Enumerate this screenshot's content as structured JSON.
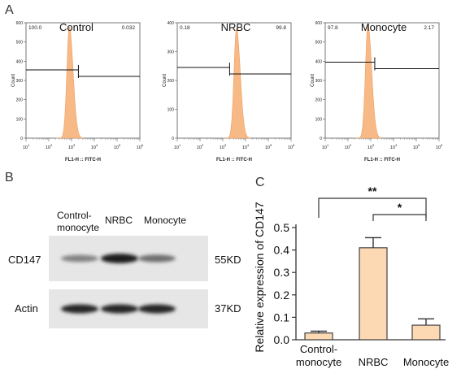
{
  "panel_letters": {
    "a": "A",
    "b": "B",
    "c": "C"
  },
  "chart_data": [
    {
      "type": "area",
      "panel": "A",
      "label": "Control",
      "xlabel": "FL1-H :: FITC-H",
      "ylabel": "Count",
      "x_scale": "log",
      "xlim": [
        10,
        1000000
      ],
      "x_ticks": [
        "10^1",
        "10^2",
        "10^3",
        "10^4",
        "10^5",
        "10^6"
      ],
      "ylim": [
        0,
        600
      ],
      "y_ticks": [
        "0",
        "100",
        "200",
        "300",
        "400",
        "500",
        "600"
      ],
      "gate_left_value": "100.0",
      "gate_right_value": "0.032",
      "peak_x": 800,
      "peak_count": 580,
      "gate_x": 2000,
      "gate_count": 355
    },
    {
      "type": "area",
      "panel": "A",
      "label": "NRBC",
      "xlabel": "FL1-H :: FITC-H",
      "ylabel": "Count",
      "x_scale": "log",
      "xlim": [
        10,
        1000000
      ],
      "x_ticks": [
        "10^1",
        "10^2",
        "10^3",
        "10^4",
        "10^5",
        "10^6"
      ],
      "ylim": [
        0,
        400
      ],
      "y_ticks": [
        "0",
        "100",
        "200",
        "300",
        "400"
      ],
      "gate_left_value": "0.18",
      "gate_right_value": "99.8",
      "peak_x": 4000,
      "peak_count": 380,
      "gate_x": 2000,
      "gate_count": 245
    },
    {
      "type": "area",
      "panel": "A",
      "label": "Monocyte",
      "xlabel": "FL1-H :: FITC-H",
      "ylabel": "Count",
      "x_scale": "log",
      "xlim": [
        10,
        1000000
      ],
      "x_ticks": [
        "10^1",
        "10^2",
        "10^3",
        "10^4",
        "10^5",
        "10^6"
      ],
      "ylim": [
        0,
        600
      ],
      "y_ticks": [
        "0",
        "100",
        "200",
        "300",
        "400",
        "500",
        "600"
      ],
      "gate_left_value": "97.8",
      "gate_right_value": "2.17",
      "peak_x": 750,
      "peak_count": 590,
      "gate_x": 1500,
      "gate_count": 395
    },
    {
      "type": "bar",
      "panel": "C",
      "categories": [
        "Control-\nmonocyte",
        "NRBC",
        "Monocyte"
      ],
      "values": [
        0.03,
        0.41,
        0.065
      ],
      "errors": [
        0.008,
        0.045,
        0.028
      ],
      "ylabel": "Relative expression of CD147",
      "ylim": [
        0,
        0.5
      ],
      "y_ticks": [
        "0.0",
        "0.1",
        "0.2",
        "0.3",
        "0.4",
        "0.5"
      ],
      "significance": [
        {
          "from": 0,
          "to": 2,
          "label": "**"
        },
        {
          "from": 1,
          "to": 2,
          "label": "*"
        }
      ],
      "bar_color": "#fcd9b2"
    }
  ],
  "blot": {
    "lanes": [
      "Control-\nmonocyte",
      "NRBC",
      "Monocyte"
    ],
    "rows": [
      {
        "label": "CD147",
        "size": "55KD",
        "intensities": [
          0.45,
          0.95,
          0.55
        ]
      },
      {
        "label": "Actin",
        "size": "37KD",
        "intensities": [
          0.9,
          0.9,
          0.9
        ]
      }
    ]
  },
  "colors": {
    "histogram_fill": "#f7b985",
    "bar_fill": "#fcd9b2",
    "axis": "#333333"
  }
}
